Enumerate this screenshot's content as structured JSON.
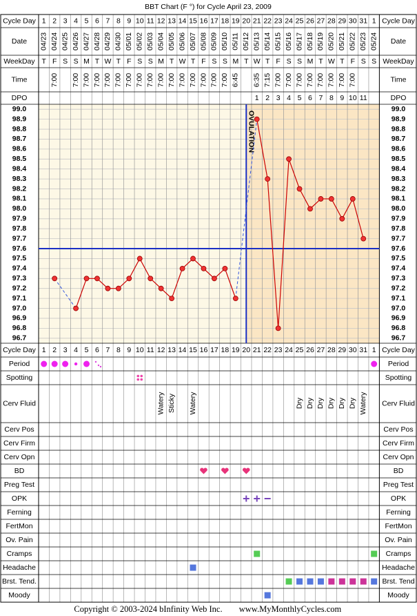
{
  "chart_data": {
    "type": "line",
    "title": "BBT Chart (F °) for Cycle April 23, 2009",
    "row_labels_left": [
      "Cycle Day",
      "Date",
      "WeekDay",
      "Time",
      "DPO",
      "Cycle Day",
      "Period",
      "Spotting",
      "Cerv Fluid",
      "Cerv Pos",
      "Cerv Firm",
      "Cerv Opn",
      "BD",
      "Preg Test",
      "OPK",
      "Ferning",
      "FertMon",
      "Ov. Pain",
      "Cramps",
      "Headache",
      "Brst. Tend.",
      "Moody"
    ],
    "row_labels_right": [
      "Cycle Day",
      "Date",
      "WeekDay",
      "Time",
      "DPO",
      "Cycle Day",
      "Period",
      "Spotting",
      "Cerv Fluid",
      "Cerv Pos",
      "Cerv Firm",
      "Cerv Opn",
      "BD",
      "Preg Test",
      "OPK",
      "Ferning",
      "FertMon",
      "Ov. Pain",
      "Cramps",
      "Headache",
      "Brst. Tend",
      "Moody"
    ],
    "categories": [
      1,
      2,
      3,
      4,
      5,
      6,
      7,
      8,
      9,
      10,
      11,
      12,
      13,
      14,
      15,
      16,
      17,
      18,
      19,
      20,
      21,
      22,
      23,
      24,
      25,
      26,
      27,
      28,
      29,
      30,
      31,
      1
    ],
    "dates": [
      "04/23",
      "04/24",
      "04/25",
      "04/26",
      "04/27",
      "04/28",
      "04/29",
      "04/30",
      "05/01",
      "05/02",
      "05/03",
      "05/04",
      "05/05",
      "05/06",
      "05/07",
      "05/08",
      "05/09",
      "05/10",
      "05/11",
      "05/12",
      "05/13",
      "05/14",
      "05/15",
      "05/16",
      "05/17",
      "05/18",
      "05/19",
      "05/20",
      "05/21",
      "05/22",
      "05/23",
      "05/24"
    ],
    "weekdays": [
      "T",
      "F",
      "S",
      "S",
      "M",
      "T",
      "W",
      "T",
      "F",
      "S",
      "S",
      "M",
      "T",
      "W",
      "T",
      "F",
      "S",
      "S",
      "M",
      "T",
      "W",
      "T",
      "F",
      "S",
      "S",
      "M",
      "T",
      "W",
      "T",
      "F",
      "S",
      "S"
    ],
    "times": [
      null,
      "7:00",
      null,
      "7:00",
      "7:00",
      "7:00",
      "7:00",
      "7:00",
      "7:00",
      "7:00",
      "7:00",
      "7:00",
      "7:00",
      "7:00",
      "7:00",
      "7:00",
      "7:00",
      "7:00",
      "6:45",
      null,
      "6:35",
      "7:15",
      "7:00",
      "7:00",
      "7:00",
      "7:00",
      "7:00",
      "7:00",
      "7:00",
      "7:00",
      null,
      null
    ],
    "dpo": [
      null,
      null,
      null,
      null,
      null,
      null,
      null,
      null,
      null,
      null,
      null,
      null,
      null,
      null,
      null,
      null,
      null,
      null,
      null,
      null,
      1,
      2,
      3,
      4,
      5,
      6,
      7,
      8,
      9,
      10,
      11,
      null
    ],
    "values": [
      null,
      97.3,
      null,
      97.0,
      97.3,
      97.3,
      97.2,
      97.2,
      97.3,
      97.5,
      97.3,
      97.2,
      97.1,
      97.4,
      97.5,
      97.4,
      97.3,
      97.4,
      97.1,
      null,
      98.9,
      98.3,
      96.8,
      98.5,
      98.2,
      98.0,
      98.1,
      98.1,
      97.9,
      98.1,
      97.7,
      null
    ],
    "color": "#cc0000",
    "ylim": [
      96.65,
      99.05
    ],
    "yticks": [
      {
        "value": 99.0,
        "label": "99.0"
      },
      98.9,
      98.8,
      98.7,
      98.6,
      98.5,
      98.4,
      98.3,
      98.2,
      98.1,
      {
        "value": 98.0,
        "label": "98.0"
      },
      97.9,
      97.8,
      97.7,
      97.6,
      97.5,
      97.4,
      97.3,
      97.2,
      97.1,
      {
        "value": 97.0,
        "label": "97.0"
      },
      96.9,
      96.8,
      96.7
    ],
    "grid": true,
    "coverline": 97.6,
    "ovulation_day": 20,
    "ovulation_label": "OVULATION",
    "cerv_fluid": [
      null,
      null,
      null,
      null,
      null,
      null,
      null,
      null,
      null,
      null,
      null,
      "Watery",
      "Sticky",
      null,
      "Watery",
      null,
      null,
      null,
      null,
      null,
      null,
      null,
      null,
      null,
      "Dry",
      "Dry",
      "Dry",
      "Dry",
      "Dry",
      "Dry",
      "Watery",
      null
    ],
    "footer": {
      "copyright": "Copyright © 2003-2024 bInfinity Web Inc.",
      "site": "www.MyMonthlyCycles.com"
    }
  }
}
